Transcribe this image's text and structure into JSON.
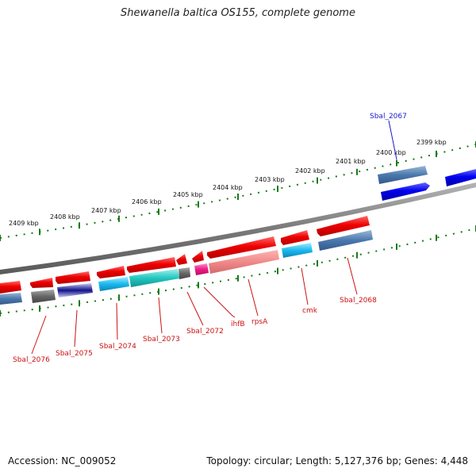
{
  "title": "Shewanella baltica OS155, complete genome",
  "footer": {
    "accession": "Accession: NC_009052",
    "summary": "Topology: circular; Length: 5,127,376 bp; Genes: 4,448"
  },
  "ruler_labels": [
    "2399 kbp",
    "2400 kbp",
    "2401 kbp",
    "2402 kbp",
    "2403 kbp",
    "2404 kbp",
    "2405 kbp",
    "2406 kbp",
    "2407 kbp",
    "2408 kbp",
    "2409 kbp"
  ],
  "gene_labels": [
    {
      "text": "Sbal_2067",
      "color": "#1a1acc"
    },
    {
      "text": "Sbal_2068",
      "color": "#cc1111"
    },
    {
      "text": "cmk",
      "color": "#cc1111"
    },
    {
      "text": "rpsA",
      "color": "#cc1111"
    },
    {
      "text": "ihfB",
      "color": "#cc1111"
    },
    {
      "text": "Sbal_2072",
      "color": "#cc1111"
    },
    {
      "text": "Sbal_2073",
      "color": "#cc1111"
    },
    {
      "text": "Sbal_2074",
      "color": "#cc1111"
    },
    {
      "text": "Sbal_2075",
      "color": "#cc1111"
    },
    {
      "text": "Sbal_2076",
      "color": "#cc1111"
    }
  ],
  "colors": {
    "backbone": "#808080",
    "ruler_tick": "#1a7a1a",
    "cds": "#ee0000",
    "cds_reverse": "#0000ee",
    "label_red": "#cc1111",
    "label_blue": "#1a1acc"
  }
}
